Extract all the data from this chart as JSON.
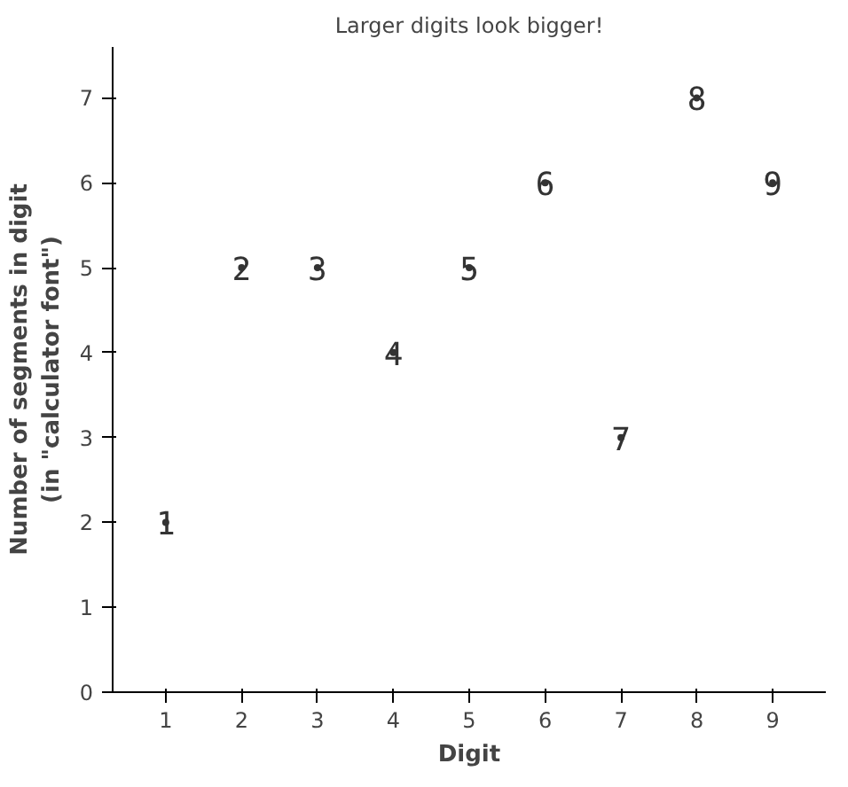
{
  "chart_data": {
    "type": "scatter",
    "title": "Larger digits look bigger!",
    "xlabel": "Digit",
    "ylabel": "Number of segments in digit\n(in \"calculator font\")",
    "x": [
      1,
      2,
      3,
      4,
      5,
      6,
      7,
      8,
      9
    ],
    "series": [
      {
        "color": "#333333",
        "values": [
          2,
          5,
          5,
          4,
          5,
          6,
          3,
          7,
          6
        ]
      }
    ],
    "annotations": [
      {
        "text": "1",
        "x": 1,
        "y": 2
      },
      {
        "text": "2",
        "x": 2,
        "y": 5
      },
      {
        "text": "3",
        "x": 3,
        "y": 5
      },
      {
        "text": "4",
        "x": 4,
        "y": 4
      },
      {
        "text": "5",
        "x": 5,
        "y": 5
      },
      {
        "text": "6",
        "x": 6,
        "y": 6
      },
      {
        "text": "7",
        "x": 7,
        "y": 3
      },
      {
        "text": "8",
        "x": 8,
        "y": 7
      },
      {
        "text": "9",
        "x": 9,
        "y": 6
      }
    ],
    "xlim": [
      0.3,
      9.7
    ],
    "ylim": [
      0,
      7.6
    ],
    "xticks": [
      1,
      2,
      3,
      4,
      5,
      6,
      7,
      8,
      9
    ],
    "yticks": [
      0,
      1,
      2,
      3,
      4,
      5,
      6,
      7
    ],
    "grid": false
  }
}
